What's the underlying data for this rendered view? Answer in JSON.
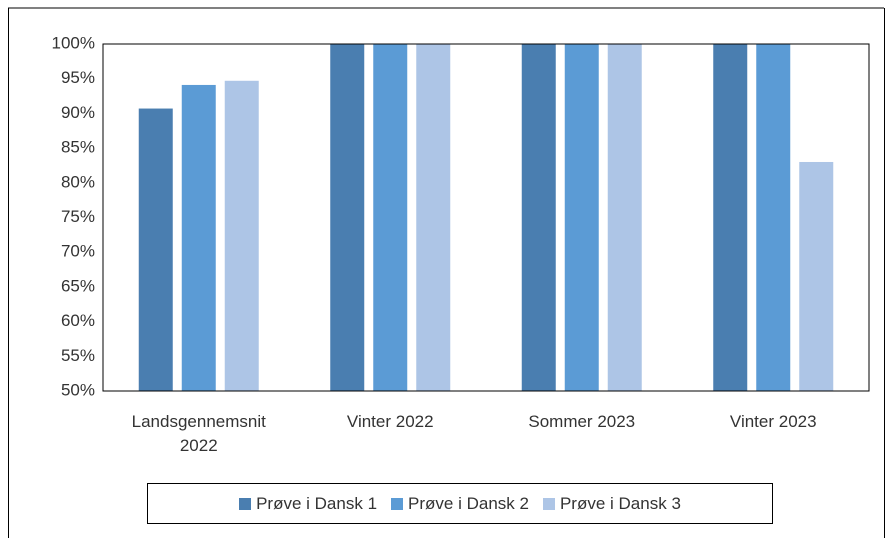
{
  "chart_data": {
    "type": "bar",
    "categories": [
      "Landsgennemsnit 2022",
      "Vinter 2022",
      "Sommer 2023",
      "Vinter 2023"
    ],
    "series": [
      {
        "name": "Prøve i Dansk 1",
        "color": "#4a7eb0",
        "values": [
          90.7,
          100,
          100,
          100
        ]
      },
      {
        "name": "Prøve i Dansk 2",
        "color": "#5b9bd5",
        "values": [
          94.1,
          100,
          100,
          100
        ]
      },
      {
        "name": "Prøve i Dansk 3",
        "color": "#adc5e6",
        "values": [
          94.7,
          100,
          100,
          83
        ]
      }
    ],
    "ylim": [
      50,
      100
    ],
    "yticks": [
      {
        "value": 50,
        "label": "50%"
      },
      {
        "value": 55,
        "label": "55%"
      },
      {
        "value": 60,
        "label": "60%"
      },
      {
        "value": 65,
        "label": "65%"
      },
      {
        "value": 70,
        "label": "70%"
      },
      {
        "value": 75,
        "label": "75%"
      },
      {
        "value": 80,
        "label": "80%"
      },
      {
        "value": 85,
        "label": "85%"
      },
      {
        "value": 90,
        "label": "90%"
      },
      {
        "value": 95,
        "label": "95%"
      },
      {
        "value": 100,
        "label": "100%"
      }
    ],
    "grid": false,
    "legend": "bottom"
  }
}
